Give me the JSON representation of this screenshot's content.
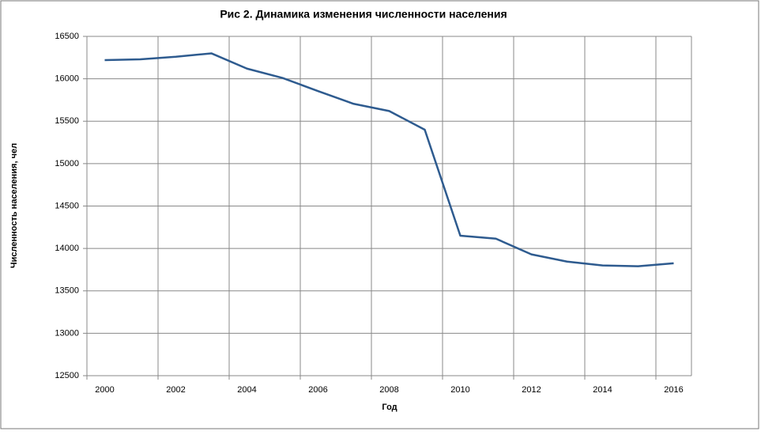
{
  "chart_data": {
    "type": "line",
    "title": "Рис 2. Динамика изменения численности населения",
    "x_label": "Год",
    "y_label": "Численность населения, чел",
    "categories": [
      "2000",
      null,
      "2002",
      null,
      "2004",
      null,
      "2006",
      null,
      "2008",
      null,
      "2010",
      null,
      "2012",
      null,
      "2014",
      null,
      "2016"
    ],
    "series": [
      {
        "name": "Численность населения",
        "color": "#2e5b8f",
        "values": [
          16220,
          16230,
          16260,
          16300,
          16120,
          16010,
          15855,
          15705,
          15620,
          15400,
          14150,
          14115,
          13930,
          13845,
          13800,
          13790,
          13825
        ]
      }
    ],
    "ylim": [
      12500,
      16500
    ],
    "yticks": [
      12500,
      13000,
      13500,
      14000,
      14500,
      15000,
      15500,
      16000,
      16500
    ],
    "grid": true
  }
}
